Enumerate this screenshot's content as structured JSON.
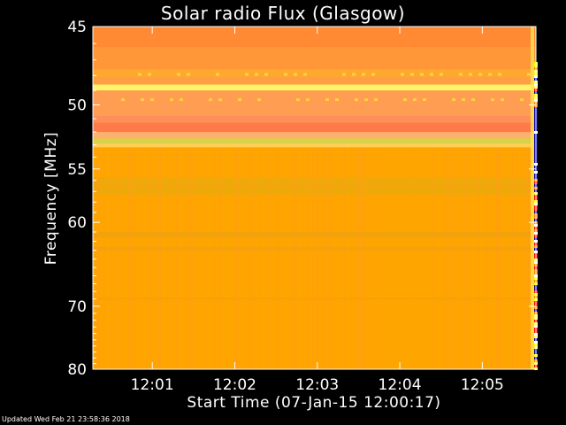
{
  "chart_data": {
    "type": "heatmap",
    "title": "Solar radio Flux (Glasgow)",
    "xlabel": "Start Time (07-Jan-15 12:00:17)",
    "ylabel": "Frequency [MHz]",
    "x_ticks": [
      "12:01",
      "12:02",
      "12:03",
      "12:04",
      "12:05"
    ],
    "x_tick_minutes": [
      1,
      2,
      3,
      4,
      5
    ],
    "x_range_minutes": [
      0.28,
      5.65
    ],
    "y_ticks": [
      45,
      50,
      55,
      60,
      70,
      80
    ],
    "y_range_mhz": [
      45,
      80
    ],
    "y_scale": "reciprocal",
    "background_color": "#ffa500",
    "bands": [
      {
        "from": 45,
        "to": 46.2,
        "color": "#ff8a33"
      },
      {
        "from": 46.2,
        "to": 47.6,
        "color": "#ff9638"
      },
      {
        "from": 47.6,
        "to": 48.1,
        "color": "#ffa830"
      },
      {
        "from": 48.1,
        "to": 48.6,
        "color": "#ff9e45"
      },
      {
        "from": 48.6,
        "to": 49.0,
        "color": "#fff56a"
      },
      {
        "from": 49.0,
        "to": 50.8,
        "color": "#ff9e52"
      },
      {
        "from": 50.8,
        "to": 51.3,
        "color": "#ff8f5a"
      },
      {
        "from": 51.3,
        "to": 52.0,
        "color": "#ff7a4a"
      },
      {
        "from": 52.0,
        "to": 52.5,
        "color": "#ffb070"
      },
      {
        "from": 52.5,
        "to": 52.9,
        "color": "#d7d24a"
      },
      {
        "from": 52.9,
        "to": 53.2,
        "color": "#ffcf55"
      },
      {
        "from": 55.7,
        "to": 57.3,
        "color": "#efa80a"
      },
      {
        "from": 61.0,
        "to": 61.6,
        "color": "#f2a20a"
      },
      {
        "from": 62.6,
        "to": 63.0,
        "color": "#f2a20a"
      },
      {
        "from": 68.8,
        "to": 69.1,
        "color": "#f5a206"
      }
    ]
  },
  "footer": {
    "updated_text": "Updated Wed Feb 21 23:58:36 2018"
  }
}
